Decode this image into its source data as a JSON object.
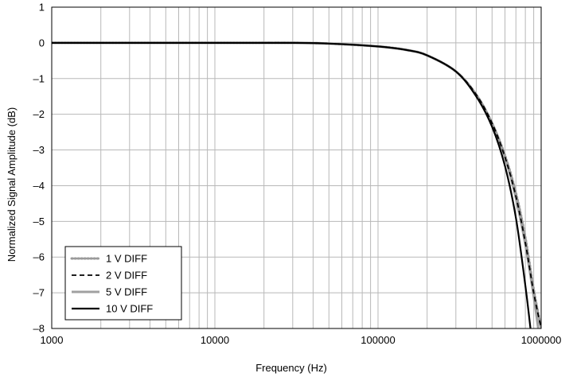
{
  "chart_data": {
    "type": "line",
    "xlabel": "Frequency (Hz)",
    "ylabel": "Normalized Signal Amplitude (dB)",
    "xscale": "log",
    "xlim": [
      1000,
      1000000
    ],
    "ylim": [
      -8,
      1
    ],
    "x_ticks": [
      "1000",
      "10000",
      "100000",
      "1000000"
    ],
    "y_ticks": [
      "1",
      "0",
      "–1",
      "–2",
      "–3",
      "–4",
      "–5",
      "–6",
      "–7",
      "–8"
    ],
    "grid": true,
    "legend_position": "bottom-left",
    "series": [
      {
        "name": "1 V DIFF",
        "style": "dotted",
        "color": "#9a9a9a",
        "x": [
          1000,
          10000,
          30000,
          50000,
          100000,
          150000,
          200000,
          300000,
          400000,
          500000,
          600000,
          700000,
          800000,
          900000,
          1000000
        ],
        "y": [
          0,
          0,
          0,
          -0.02,
          -0.1,
          -0.2,
          -0.35,
          -0.8,
          -1.45,
          -2.25,
          -3.15,
          -4.2,
          -5.45,
          -6.9,
          -8
        ]
      },
      {
        "name": "2 V DIFF",
        "style": "dashed",
        "color": "#000000",
        "x": [
          1000,
          10000,
          30000,
          50000,
          100000,
          150000,
          200000,
          300000,
          400000,
          500000,
          600000,
          700000,
          800000,
          900000,
          1000000
        ],
        "y": [
          0,
          0,
          0,
          -0.02,
          -0.1,
          -0.2,
          -0.35,
          -0.8,
          -1.45,
          -2.25,
          -3.2,
          -4.3,
          -5.6,
          -7.0,
          -8
        ]
      },
      {
        "name": "5 V DIFF",
        "style": "solid",
        "color": "#a0a0a0",
        "x": [
          1000,
          10000,
          30000,
          50000,
          100000,
          150000,
          200000,
          300000,
          400000,
          500000,
          600000,
          700000,
          800000,
          900000,
          960000
        ],
        "y": [
          0,
          0,
          0,
          -0.02,
          -0.1,
          -0.2,
          -0.35,
          -0.8,
          -1.45,
          -2.25,
          -3.2,
          -4.35,
          -5.65,
          -7.1,
          -8
        ]
      },
      {
        "name": "10 V DIFF",
        "style": "solid",
        "color": "#000000",
        "x": [
          1000,
          10000,
          30000,
          50000,
          100000,
          150000,
          200000,
          300000,
          400000,
          500000,
          600000,
          700000,
          800000,
          860000
        ],
        "y": [
          0,
          0,
          0,
          -0.02,
          -0.1,
          -0.2,
          -0.35,
          -0.8,
          -1.5,
          -2.35,
          -3.45,
          -4.9,
          -6.8,
          -8
        ]
      }
    ]
  }
}
